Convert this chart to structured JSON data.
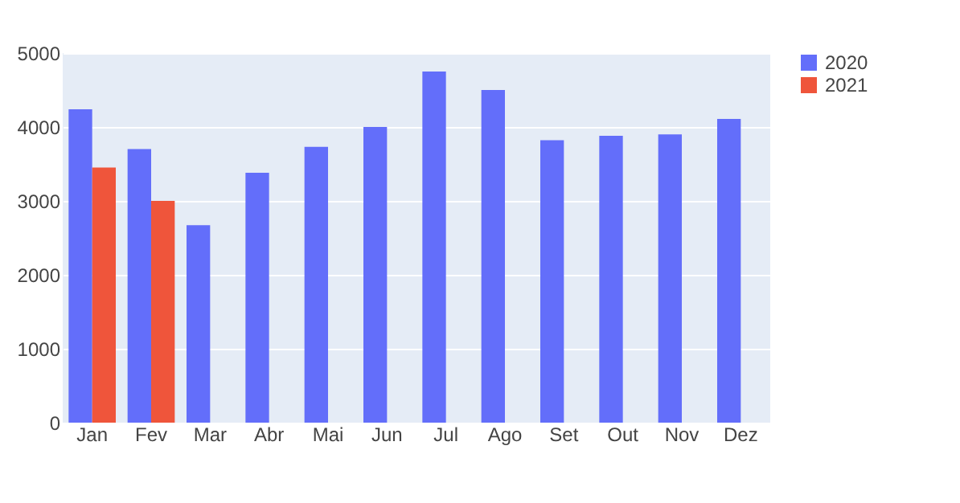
{
  "chart_data": {
    "type": "bar",
    "categories": [
      "Jan",
      "Fev",
      "Mar",
      "Abr",
      "Mai",
      "Jun",
      "Jul",
      "Ago",
      "Set",
      "Out",
      "Nov",
      "Dez"
    ],
    "series": [
      {
        "name": "2020",
        "color": "#636efa",
        "values": [
          4240,
          3700,
          2670,
          3380,
          3730,
          4000,
          4750,
          4500,
          3820,
          3880,
          3900,
          4110
        ]
      },
      {
        "name": "2021",
        "color": "#ef553b",
        "values": [
          3450,
          3000,
          null,
          null,
          null,
          null,
          null,
          null,
          null,
          null,
          null,
          null
        ]
      }
    ],
    "ylim": [
      0,
      5000
    ],
    "yticks": [
      0,
      1000,
      2000,
      3000,
      4000,
      5000
    ],
    "grid": "y",
    "legend": "top right"
  }
}
